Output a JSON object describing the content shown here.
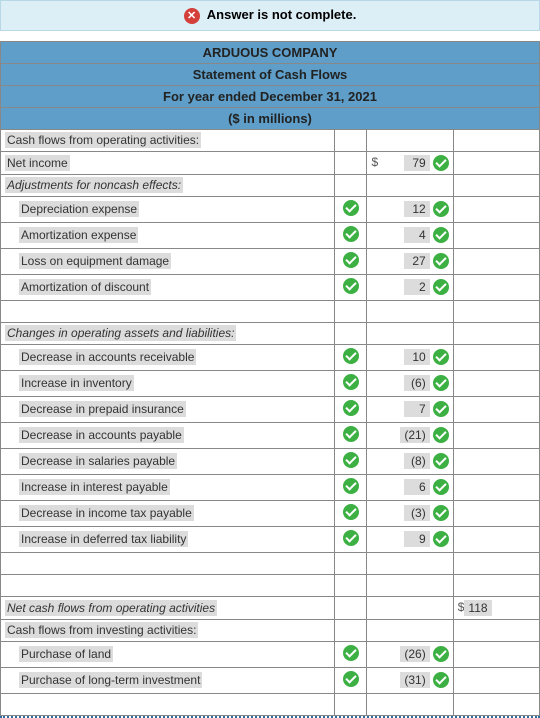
{
  "banner": {
    "text": "Answer is not complete."
  },
  "header": {
    "company": "ARDUOUS COMPANY",
    "statement": "Statement of Cash Flows",
    "period": "For year ended December 31, 2021",
    "units": "($ in millions)"
  },
  "sections": {
    "operating_header": "Cash flows from operating activities:",
    "net_income_label": "Net income",
    "net_income_value": "79",
    "adjustments_header": "Adjustments for noncash effects:",
    "adjustments": [
      {
        "label": "Depreciation expense",
        "value": "12"
      },
      {
        "label": "Amortization expense",
        "value": "4"
      },
      {
        "label": "Loss on equipment damage",
        "value": "27"
      },
      {
        "label": "Amortization of discount",
        "value": "2"
      }
    ],
    "changes_header": "Changes in operating assets and liabilities:",
    "changes": [
      {
        "label": "Decrease in accounts receivable",
        "value": "10"
      },
      {
        "label": "Increase in inventory",
        "value": "(6)"
      },
      {
        "label": "Decrease in prepaid insurance",
        "value": "7"
      },
      {
        "label": "Decrease in accounts payable",
        "value": "(21)"
      },
      {
        "label": "Decrease in salaries payable",
        "value": "(8)"
      },
      {
        "label": "Increase in interest payable",
        "value": "6"
      },
      {
        "label": "Decrease in income tax payable",
        "value": "(3)"
      },
      {
        "label": "Increase in deferred tax liability",
        "value": "9"
      }
    ],
    "net_operating_label": "Net cash flows from operating activities",
    "net_operating_value": "118",
    "investing_header": "Cash flows from investing activities:",
    "investing": [
      {
        "label": "Purchase of land",
        "value": "(26)"
      },
      {
        "label": "Purchase of long-term investment",
        "value": "(31)"
      }
    ]
  }
}
